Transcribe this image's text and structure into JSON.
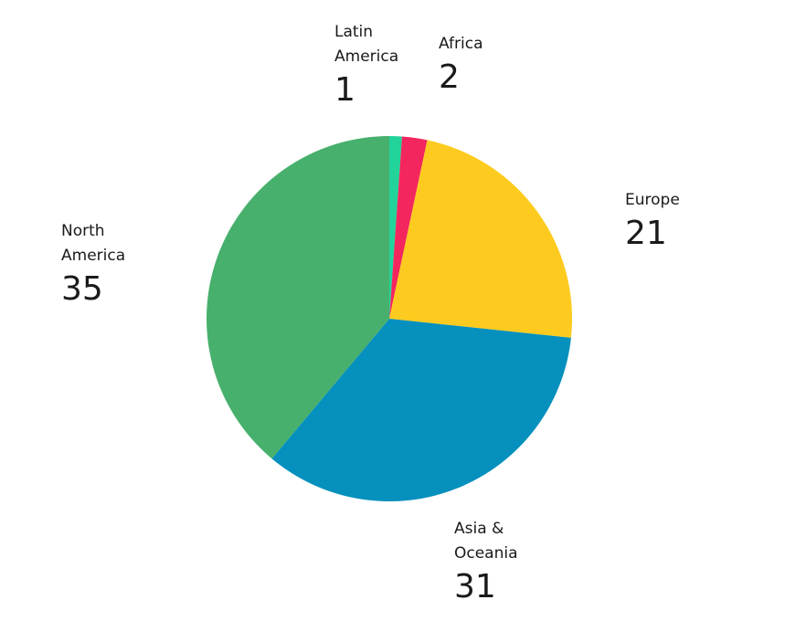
{
  "chart_data": {
    "type": "pie",
    "categories": [
      "Latin\nAmerica",
      "Africa",
      "Europe",
      "Asia &\nOceania",
      "North\nAmerica"
    ],
    "values": [
      1,
      2,
      21,
      31,
      35
    ],
    "colors": [
      "#22d39a",
      "#f4265e",
      "#fdcb1f",
      "#0590bd",
      "#47b06c"
    ],
    "start_angle_deg": 0,
    "direction": "clockwise",
    "legend": "none",
    "data_labels": "outside, category above value"
  }
}
